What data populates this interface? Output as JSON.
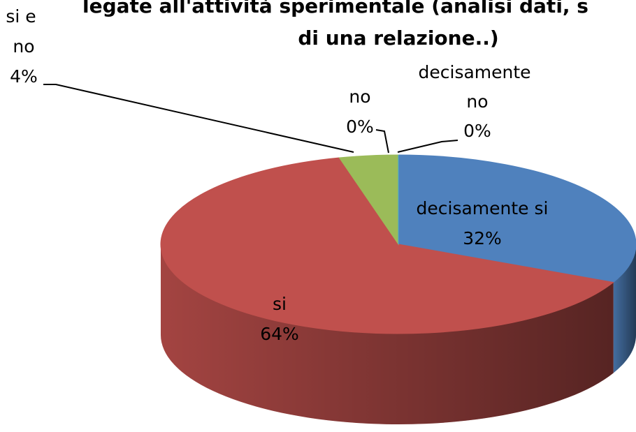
{
  "chart_data": {
    "type": "pie",
    "title": [
      "legate all'attività sperimentale (analisi dati, s",
      "di una relazione..)"
    ],
    "categories": [
      "decisamente si",
      "si",
      "si e no",
      "no",
      "decisamente no"
    ],
    "values": [
      32,
      64,
      4,
      0,
      0
    ],
    "value_labels": [
      "32%",
      "64%",
      "4%",
      "0%",
      "0%"
    ],
    "colors": [
      "#4f81bd",
      "#c0504d",
      "#9bbb59",
      "#8064a2",
      "#4bacc6"
    ]
  }
}
